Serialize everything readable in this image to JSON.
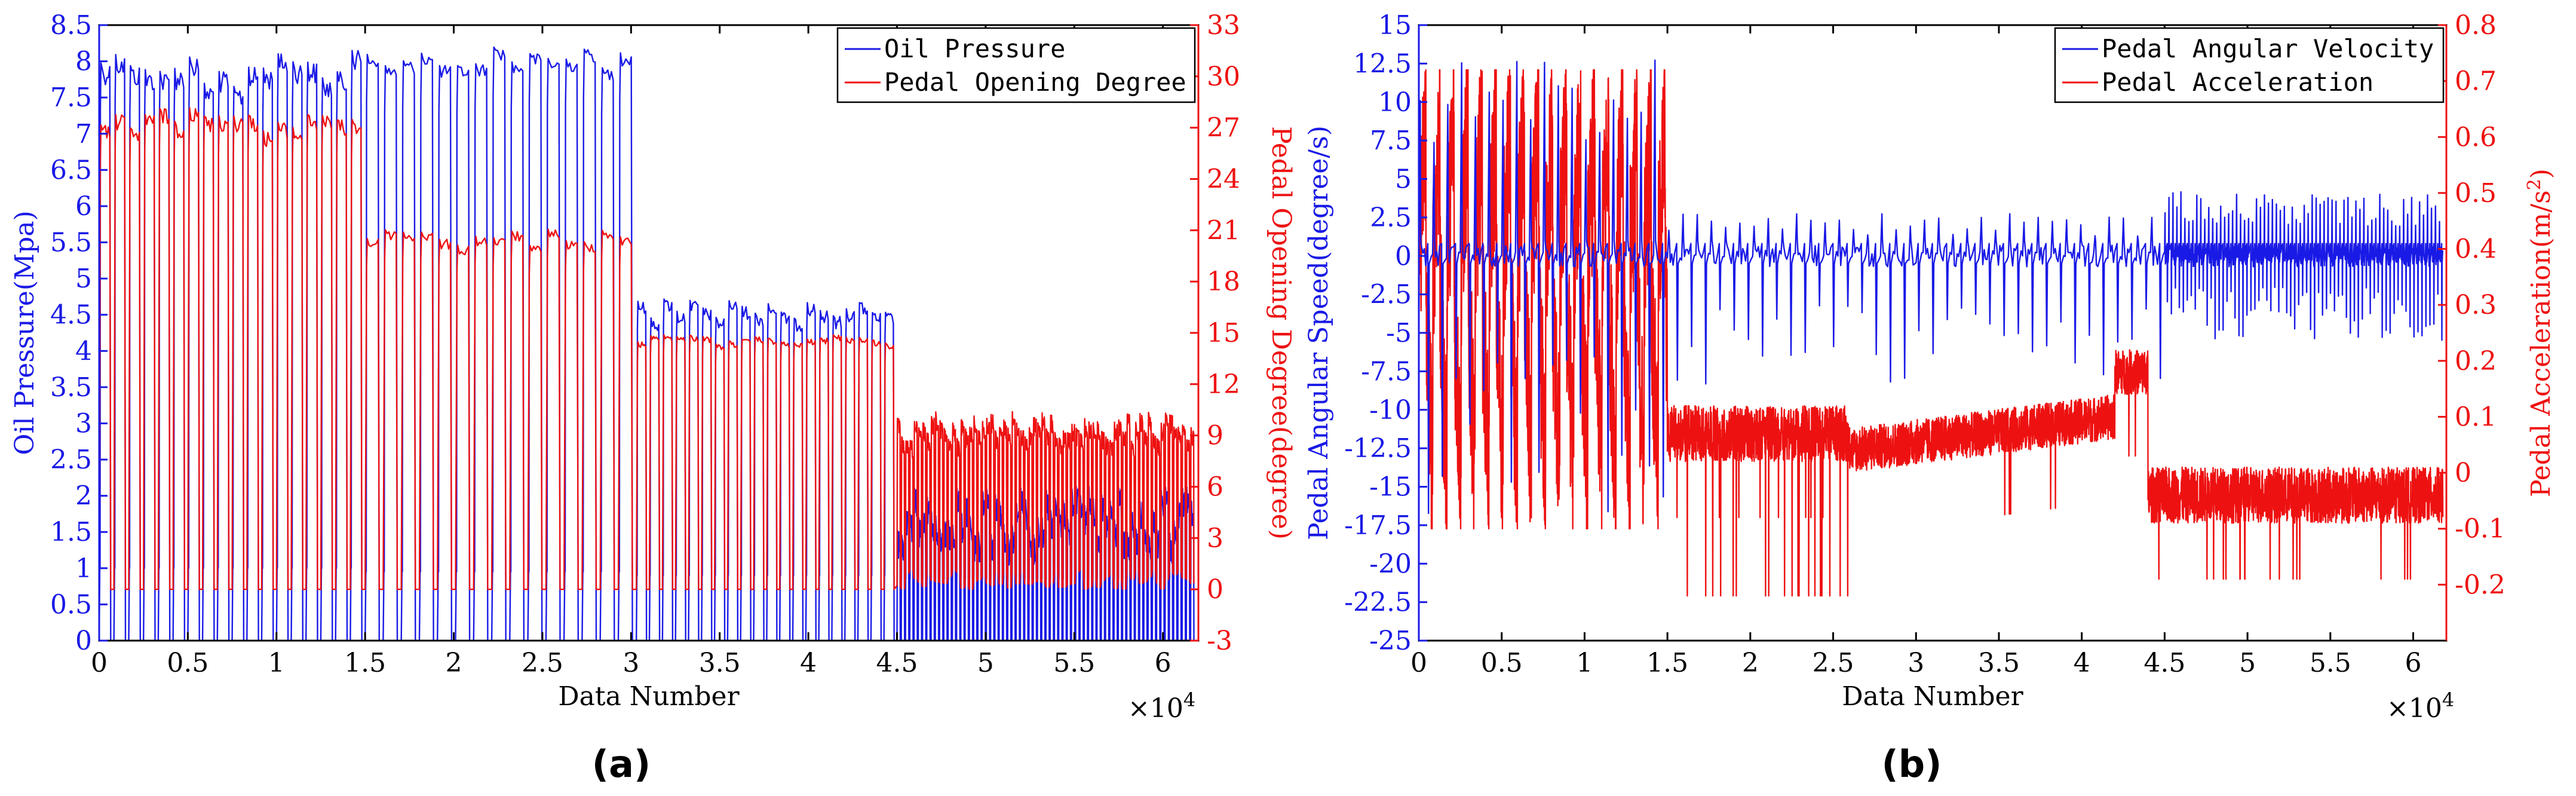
{
  "colors": {
    "blue": "#1a1ae6",
    "red": "#ee1111",
    "axis": "#000000"
  },
  "chart_data": [
    {
      "panel_label": "(a)",
      "type": "line",
      "xlabel": "Data Number",
      "x_multiplier_label": "×10",
      "x_multiplier_exp": "4",
      "xlim": [
        0,
        6.2
      ],
      "xticks": [
        0,
        0.5,
        1,
        1.5,
        2,
        2.5,
        3,
        3.5,
        4,
        4.5,
        5,
        5.5,
        6
      ],
      "xtick_labels": [
        "0",
        "0.5",
        "1",
        "1.5",
        "2",
        "2.5",
        "3",
        "3.5",
        "4",
        "4.5",
        "5",
        "5.5",
        "6"
      ],
      "ylabel_left": "Oil Pressure(Mpa)",
      "ylim_left": [
        0,
        8.5
      ],
      "yticks_left": [
        0,
        0.5,
        1,
        1.5,
        2,
        2.5,
        3,
        3.5,
        4,
        4.5,
        5,
        5.5,
        6,
        6.5,
        7,
        7.5,
        8,
        8.5
      ],
      "ytick_labels_left": [
        "0",
        "0.5",
        "1",
        "1.5",
        "2",
        "2.5",
        "3",
        "3.5",
        "4",
        "4.5",
        "5",
        "5.5",
        "6",
        "6.5",
        "7",
        "7.5",
        "8",
        "8.5"
      ],
      "ylabel_right": "Pedal Opening Degree(degree)",
      "ylim_right": [
        -3,
        33
      ],
      "yticks_right": [
        -3,
        0,
        3,
        6,
        9,
        12,
        15,
        18,
        21,
        24,
        27,
        30,
        33
      ],
      "ytick_labels_right": [
        "-3",
        "0",
        "3",
        "6",
        "9",
        "12",
        "15",
        "18",
        "21",
        "24",
        "27",
        "30",
        "33"
      ],
      "legend_position": "top-right",
      "legend": [
        "Oil Pressure",
        "Pedal Opening Degree"
      ],
      "series": [
        {
          "name": "Oil Pressure",
          "axis": "left",
          "color": "#1a1ae6",
          "segments": [
            {
              "x_start": 0,
              "x_end": 1.5,
              "cycles": 18,
              "high": 7.9,
              "high_spread": 0.25,
              "low": 0,
              "mid_step": 1.0
            },
            {
              "x_start": 1.5,
              "x_end": 3.03,
              "cycles": 15,
              "high": 8.05,
              "high_spread": 0.15,
              "low": 0,
              "mid_step": 0.95
            },
            {
              "x_start": 3.03,
              "x_end": 4.5,
              "cycles": 20,
              "high": 4.6,
              "high_spread": 0.15,
              "low": 0,
              "mid_step": 0.9
            },
            {
              "x_start": 4.5,
              "x_end": 6.18,
              "cycles": 70,
              "high": 1.8,
              "high_spread": 0.35,
              "low": 0,
              "mid_step": 0.85
            }
          ]
        },
        {
          "name": "Pedal Opening Degree",
          "axis": "right",
          "color": "#ee1111",
          "segments": [
            {
              "x_start": 0,
              "x_end": 1.5,
              "cycles": 18,
              "high": 27.5,
              "high_spread": 0.8,
              "low": 0
            },
            {
              "x_start": 1.5,
              "x_end": 3.03,
              "cycles": 15,
              "high": 20.6,
              "high_spread": 0.5,
              "low": 0
            },
            {
              "x_start": 3.03,
              "x_end": 4.5,
              "cycles": 20,
              "high": 14.6,
              "high_spread": 0.3,
              "low": 0
            },
            {
              "x_start": 4.5,
              "x_end": 6.18,
              "cycles": 70,
              "high": 9.5,
              "high_spread": 0.9,
              "low": 0,
              "low_spread": 1.2
            }
          ]
        }
      ]
    },
    {
      "panel_label": "(b)",
      "type": "line",
      "xlabel": "Data Number",
      "x_multiplier_label": "×10",
      "x_multiplier_exp": "4",
      "xlim": [
        0,
        6.2
      ],
      "xticks": [
        0,
        0.5,
        1,
        1.5,
        2,
        2.5,
        3,
        3.5,
        4,
        4.5,
        5,
        5.5,
        6
      ],
      "xtick_labels": [
        "0",
        "0.5",
        "1",
        "1.5",
        "2",
        "2.5",
        "3",
        "3.5",
        "4",
        "4.5",
        "5",
        "5.5",
        "6"
      ],
      "ylabel_left": "Pedal Angular Speed(degree/s)",
      "ylim_left": [
        -25,
        15
      ],
      "yticks_left": [
        -25,
        -22.5,
        -20,
        -17.5,
        -15,
        -12.5,
        -10,
        -7.5,
        -5,
        -2.5,
        0,
        2.5,
        5,
        7.5,
        10,
        12.5,
        15
      ],
      "ytick_labels_left": [
        "-25",
        "-22.5",
        "-20",
        "-17.5",
        "-15",
        "-12.5",
        "-10",
        "-7.5",
        "-5",
        "-2.5",
        "0",
        "2.5",
        "5",
        "7.5",
        "10",
        "12.5",
        "15"
      ],
      "ylabel_right": "Pedal Acceleration(m/s",
      "ylabel_right_sup": "2",
      "ylabel_right_end": ")",
      "ylim_right": [
        -0.3,
        0.8
      ],
      "yticks_right": [
        -0.2,
        -0.1,
        0,
        0.1,
        0.2,
        0.3,
        0.4,
        0.5,
        0.6,
        0.7,
        0.8
      ],
      "ytick_labels_right": [
        "-0.2",
        "-0.1",
        "0",
        "0.1",
        "0.2",
        "0.3",
        "0.4",
        "0.5",
        "0.6",
        "0.7",
        "0.8"
      ],
      "legend_position": "top-right",
      "legend": [
        "Pedal Angular Velocity",
        "Pedal Acceleration"
      ],
      "series": [
        {
          "name": "Pedal Angular Velocity",
          "axis": "left",
          "color": "#1a1ae6",
          "segments": [
            {
              "x_start": 0,
              "x_end": 1.5,
              "spikes": 18,
              "baseline": 0,
              "pos_peak": 12.0,
              "neg_peak": -16.0
            },
            {
              "x_start": 1.5,
              "x_end": 4.5,
              "spikes": 35,
              "baseline": 0,
              "pos_peak": 2.5,
              "neg_peak": -8.0
            },
            {
              "x_start": 4.5,
              "x_end": 6.18,
              "spikes": 70,
              "baseline": 0,
              "pos_peak": 3.8,
              "neg_peak": -5.0
            }
          ]
        },
        {
          "name": "Pedal Acceleration",
          "axis": "right",
          "color": "#ee1111",
          "segments": [
            {
              "x_start": 0,
              "x_end": 1.5,
              "range": [
                -0.1,
                0.72
              ]
            },
            {
              "x_start": 1.5,
              "x_end": 2.6,
              "mean": 0.07,
              "noise": 0.05,
              "dips": -0.22
            },
            {
              "x_start": 2.6,
              "x_end": 4.2,
              "mean": 0.04,
              "noise": 0.04,
              "rise_to": 0.1
            },
            {
              "x_start": 4.2,
              "x_end": 4.4,
              "mean": 0.18,
              "noise": 0.04
            },
            {
              "x_start": 4.4,
              "x_end": 6.18,
              "mean": -0.04,
              "noise": 0.05
            }
          ]
        }
      ]
    }
  ]
}
